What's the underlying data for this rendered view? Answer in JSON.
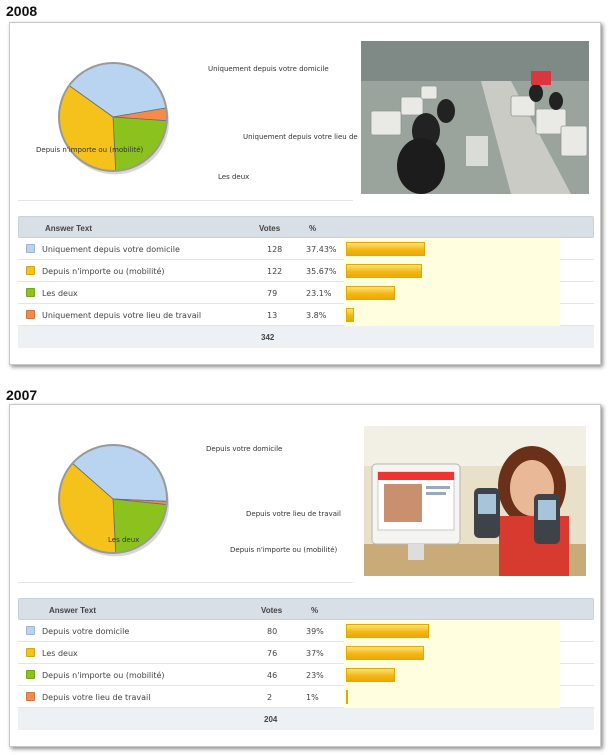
{
  "panels": [
    {
      "year": "2008",
      "photo_kind": "internet-cafe-photo",
      "table": {
        "headers": {
          "answer": "Answer Text",
          "votes": "Votes",
          "percent": "%"
        },
        "rows": [
          {
            "label": "Uniquement depuis votre domicile",
            "votes": "128",
            "percent": "37.43%",
            "value": 37.43,
            "color": "#b8d4f0"
          },
          {
            "label": "Depuis n'importe ou (mobilité)",
            "votes": "122",
            "percent": "35.67%",
            "value": 35.67,
            "color": "#f5c21c"
          },
          {
            "label": "Les deux",
            "votes": "79",
            "percent": "23.1%",
            "value": 23.1,
            "color": "#8bc21e"
          },
          {
            "label": "Uniquement depuis votre lieu de travail",
            "votes": "13",
            "percent": "3.8%",
            "value": 3.8,
            "color": "#f58a4b"
          }
        ],
        "total": "342"
      },
      "pie_labels": [
        "Uniquement depuis votre domicile",
        "Uniquement depuis votre lieu de",
        "Les deux",
        "Depuis n'importe ou (mobilité)"
      ]
    },
    {
      "year": "2007",
      "photo_kind": "mobile-phone-youtube-photo",
      "table": {
        "headers": {
          "answer": "Answer Text",
          "votes": "Votes",
          "percent": "%"
        },
        "rows": [
          {
            "label": "Depuis votre domicile",
            "votes": "80",
            "percent": "39%",
            "value": 39,
            "color": "#b8d4f0"
          },
          {
            "label": "Les deux",
            "votes": "76",
            "percent": "37%",
            "value": 37,
            "color": "#f5c21c"
          },
          {
            "label": "Depuis n'importe ou (mobilité)",
            "votes": "46",
            "percent": "23%",
            "value": 23,
            "color": "#8bc21e"
          },
          {
            "label": "Depuis votre lieu de travail",
            "votes": "2",
            "percent": "1%",
            "value": 1,
            "color": "#f58a4b"
          }
        ],
        "total": "204"
      },
      "pie_labels": [
        "Depuis votre domicile",
        "Depuis votre lieu de travail",
        "Depuis n'importe ou (mobilité)",
        "Les deux"
      ]
    }
  ],
  "chart_data": [
    {
      "type": "pie",
      "title": "",
      "categories": [
        "Uniquement depuis votre domicile",
        "Depuis n'importe ou (mobilité)",
        "Les deux",
        "Uniquement depuis votre lieu de travail"
      ],
      "values": [
        128,
        122,
        79,
        13
      ],
      "percent": [
        37.43,
        35.67,
        23.1,
        3.8
      ],
      "colors": [
        "#b8d4f0",
        "#f5c21c",
        "#8bc21e",
        "#f58a4b"
      ],
      "slice_order": [
        0,
        3,
        2,
        1
      ]
    },
    {
      "type": "pie",
      "title": "",
      "categories": [
        "Depuis votre domicile",
        "Les deux",
        "Depuis n'importe ou (mobilité)",
        "Depuis votre lieu de travail"
      ],
      "values": [
        80,
        76,
        46,
        2
      ],
      "percent": [
        39,
        37,
        23,
        1
      ],
      "colors": [
        "#b8d4f0",
        "#f5c21c",
        "#8bc21e",
        "#f58a4b"
      ],
      "slice_order": [
        0,
        3,
        2,
        1
      ]
    }
  ]
}
